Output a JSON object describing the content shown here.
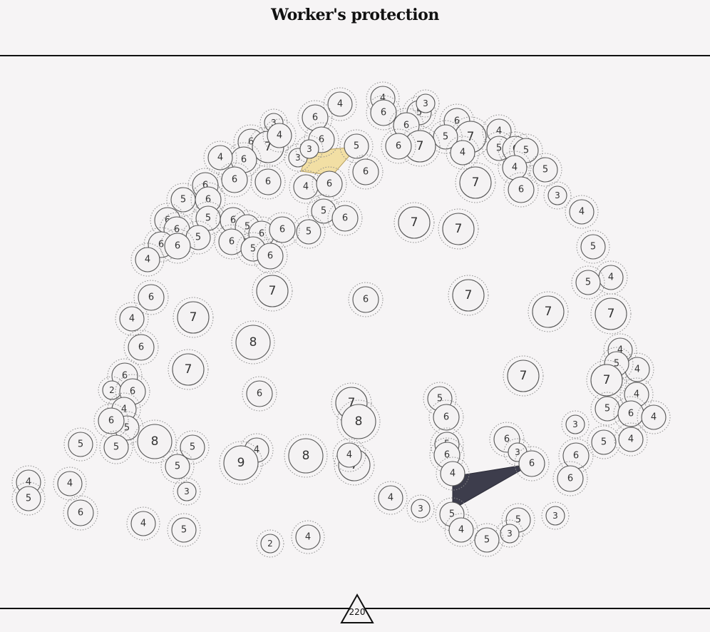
{
  "title": "Worker's protection",
  "page_number": "220",
  "colors": {
    "background": "#f6f4f5",
    "rule": "#111111",
    "highlight_yellow": "#f2dfa4",
    "highlight_dark": "#3d3d4c"
  },
  "nodes": [
    {
      "label": "4",
      "shape": "circle"
    },
    {
      "label": "4",
      "shape": "circle"
    },
    {
      "label": "3",
      "shape": "circle"
    },
    {
      "label": "6",
      "shape": "circle"
    },
    {
      "label": "6",
      "shape": "circle"
    },
    {
      "label": "5",
      "shape": "circle"
    },
    {
      "label": "3",
      "shape": "circle"
    },
    {
      "label": "6",
      "shape": "circle"
    },
    {
      "label": "6",
      "shape": "circle"
    },
    {
      "label": "7",
      "shape": "circle"
    },
    {
      "label": "5",
      "shape": "circle"
    },
    {
      "label": "6",
      "shape": "circle"
    },
    {
      "label": "7",
      "shape": "circle"
    },
    {
      "label": "4",
      "shape": "circle"
    },
    {
      "label": "4",
      "shape": "circle"
    },
    {
      "label": "7",
      "shape": "circle"
    },
    {
      "label": "5",
      "shape": "circle"
    },
    {
      "label": "4",
      "shape": "circle"
    },
    {
      "label": "6",
      "shape": "circle"
    },
    {
      "label": "6",
      "shape": "circle"
    },
    {
      "label": "6",
      "shape": "circle"
    },
    {
      "label": "5",
      "shape": "circle"
    },
    {
      "label": "6",
      "shape": "circle"
    },
    {
      "label": "4",
      "shape": "circle"
    },
    {
      "label": "5",
      "shape": "circle"
    },
    {
      "label": "4",
      "shape": "circle"
    },
    {
      "label": "3",
      "shape": "circle"
    },
    {
      "label": "6",
      "shape": "circle"
    },
    {
      "label": "6",
      "shape": "circle"
    },
    {
      "label": "4",
      "shape": "circle"
    },
    {
      "label": "6",
      "shape": "circle"
    },
    {
      "label": "3",
      "shape": "circle"
    },
    {
      "label": "5",
      "shape": "circle"
    },
    {
      "label": "6",
      "shape": "circle"
    },
    {
      "label": "7",
      "shape": "circle"
    },
    {
      "label": "6",
      "shape": "circle"
    },
    {
      "label": "6",
      "shape": "circle"
    },
    {
      "label": "5",
      "shape": "circle"
    },
    {
      "label": "6",
      "shape": "circle"
    },
    {
      "label": "3",
      "shape": "circle"
    },
    {
      "label": "6",
      "shape": "circle"
    },
    {
      "label": "5",
      "shape": "circle"
    },
    {
      "label": "5",
      "shape": "circle"
    },
    {
      "label": "6",
      "shape": "circle"
    },
    {
      "label": "6",
      "shape": "circle"
    },
    {
      "label": "6",
      "shape": "circle"
    },
    {
      "label": "5",
      "shape": "circle"
    },
    {
      "label": "6",
      "shape": "circle"
    },
    {
      "label": "5",
      "shape": "circle"
    },
    {
      "label": "6",
      "shape": "circle"
    },
    {
      "label": "5",
      "shape": "circle"
    },
    {
      "label": "6",
      "shape": "circle"
    },
    {
      "label": "6",
      "shape": "circle"
    },
    {
      "label": "4",
      "shape": "circle"
    },
    {
      "label": "6",
      "shape": "circle"
    },
    {
      "label": "7",
      "shape": "circle"
    },
    {
      "label": "5",
      "shape": "circle"
    },
    {
      "label": "7",
      "shape": "circle"
    },
    {
      "label": "5",
      "shape": "circle"
    },
    {
      "label": "6",
      "shape": "circle"
    },
    {
      "label": "4",
      "shape": "circle"
    },
    {
      "label": "7",
      "shape": "circle"
    },
    {
      "label": "4",
      "shape": "circle"
    },
    {
      "label": "6",
      "shape": "circle"
    },
    {
      "label": "5",
      "shape": "circle"
    },
    {
      "label": "4",
      "shape": "circle"
    },
    {
      "label": "7",
      "shape": "circle"
    },
    {
      "label": "7",
      "shape": "circle"
    },
    {
      "label": "7",
      "shape": "circle"
    },
    {
      "label": "8",
      "shape": "circle"
    },
    {
      "label": "6",
      "shape": "circle"
    },
    {
      "label": "4",
      "shape": "circle"
    },
    {
      "label": "6",
      "shape": "circle"
    },
    {
      "label": "7",
      "shape": "circle"
    },
    {
      "label": "7",
      "shape": "circle"
    },
    {
      "label": "7",
      "shape": "circle"
    },
    {
      "label": "4",
      "shape": "circle"
    },
    {
      "label": "5",
      "shape": "circle"
    },
    {
      "label": "4",
      "shape": "circle"
    },
    {
      "label": "7",
      "shape": "circle"
    },
    {
      "label": "6",
      "shape": "circle"
    },
    {
      "label": "2",
      "shape": "circle"
    },
    {
      "label": "6",
      "shape": "circle"
    },
    {
      "label": "4",
      "shape": "circle"
    },
    {
      "label": "6",
      "shape": "circle"
    },
    {
      "label": "5",
      "shape": "circle"
    },
    {
      "label": "6",
      "shape": "circle"
    },
    {
      "label": "5",
      "shape": "circle"
    },
    {
      "label": "5",
      "shape": "circle"
    },
    {
      "label": "6",
      "shape": "circle"
    },
    {
      "label": "6",
      "shape": "circle"
    },
    {
      "label": "4",
      "shape": "circle"
    },
    {
      "label": "3",
      "shape": "circle"
    },
    {
      "label": "7",
      "shape": "circle"
    },
    {
      "label": "8",
      "shape": "circle"
    },
    {
      "label": "5",
      "shape": "circle"
    },
    {
      "label": "6",
      "shape": "circle"
    },
    {
      "label": "5",
      "shape": "circle"
    },
    {
      "label": "6",
      "shape": "circle"
    },
    {
      "label": "5",
      "shape": "circle"
    },
    {
      "label": "4",
      "shape": "circle"
    },
    {
      "label": "5",
      "shape": "circle"
    },
    {
      "label": "8",
      "shape": "circle"
    },
    {
      "label": "5",
      "shape": "circle"
    },
    {
      "label": "4",
      "shape": "circle"
    },
    {
      "label": "5",
      "shape": "circle"
    },
    {
      "label": "3",
      "shape": "circle"
    },
    {
      "label": "9",
      "shape": "circle"
    },
    {
      "label": "8",
      "shape": "circle"
    },
    {
      "label": "7",
      "shape": "circle"
    },
    {
      "label": "4",
      "shape": "circle"
    },
    {
      "label": "6",
      "shape": "circle"
    },
    {
      "label": "6",
      "shape": "circle"
    },
    {
      "label": "4",
      "shape": "circle"
    },
    {
      "label": "6",
      "shape": "circle"
    },
    {
      "label": "4",
      "shape": "circle"
    },
    {
      "label": "4",
      "shape": "circle"
    },
    {
      "label": "5",
      "shape": "circle"
    },
    {
      "label": "3",
      "shape": "circle"
    },
    {
      "label": "4",
      "shape": "circle"
    },
    {
      "label": "3",
      "shape": "circle"
    },
    {
      "label": "6",
      "shape": "circle"
    },
    {
      "label": "5",
      "shape": "circle"
    },
    {
      "label": "5",
      "shape": "circle"
    },
    {
      "label": "3",
      "shape": "circle"
    },
    {
      "label": "3",
      "shape": "circle"
    },
    {
      "label": "5",
      "shape": "circle"
    },
    {
      "label": "4",
      "shape": "circle"
    },
    {
      "label": "4",
      "shape": "circle"
    },
    {
      "label": "5",
      "shape": "circle"
    },
    {
      "label": "2",
      "shape": "circle"
    },
    {
      "label": "4",
      "shape": "circle"
    },
    {
      "label": "2",
      "shape": "circle"
    },
    {
      "label": "4",
      "shape": "circle"
    },
    {
      "label": "4",
      "shape": "circle"
    },
    {
      "label": "3",
      "shape": "circle"
    },
    {
      "label": "6",
      "shape": "circle"
    },
    {
      "label": "5",
      "shape": "circle"
    },
    {
      "label": "5",
      "shape": "circle"
    },
    {
      "label": "4",
      "shape": "circle"
    },
    {
      "label": "5",
      "shape": "circle"
    },
    {
      "label": "5",
      "shape": "circle"
    },
    {
      "label": "4",
      "shape": "circle"
    },
    {
      "label": "3",
      "shape": "circle"
    },
    {
      "label": "5",
      "shape": "circle"
    },
    {
      "label": "4",
      "shape": "circle"
    },
    {
      "label": "6",
      "shape": "circle"
    },
    {
      "label": "4",
      "shape": "circle"
    }
  ]
}
